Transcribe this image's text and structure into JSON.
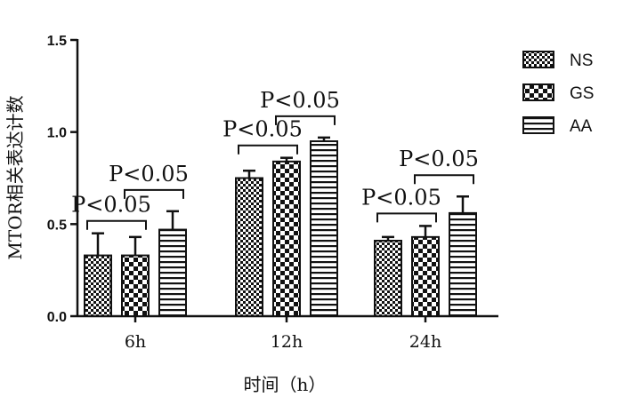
{
  "chart_data": {
    "type": "bar",
    "categories": [
      "6h",
      "12h",
      "24h"
    ],
    "series": [
      {
        "name": "NS",
        "pattern": "checker-fine",
        "values": [
          0.33,
          0.75,
          0.41
        ],
        "errors": [
          0.12,
          0.04,
          0.02
        ]
      },
      {
        "name": "GS",
        "pattern": "checker-coarse",
        "values": [
          0.33,
          0.84,
          0.43
        ],
        "errors": [
          0.1,
          0.02,
          0.06
        ]
      },
      {
        "name": "AA",
        "pattern": "horizontal-stripes",
        "values": [
          0.47,
          0.95,
          0.56
        ],
        "errors": [
          0.1,
          0.02,
          0.09
        ]
      }
    ],
    "xlabel": "时间（h）",
    "ylabel": "MTOR相关表达计数",
    "ylim": [
      0,
      1.5
    ],
    "yticks": [
      "0.0",
      "0.5",
      "1.0",
      "1.5"
    ],
    "legend_position": "right",
    "grid": false,
    "annotations": [
      {
        "text": "P<0.05",
        "category": 0,
        "from": 0,
        "to": 1
      },
      {
        "text": "P<0.05",
        "category": 0,
        "from": 1,
        "to": 2
      },
      {
        "text": "P<0.05",
        "category": 1,
        "from": 0,
        "to": 1
      },
      {
        "text": "P<0.05",
        "category": 1,
        "from": 1,
        "to": 2
      },
      {
        "text": "P<0.05",
        "category": 2,
        "from": 0,
        "to": 1
      },
      {
        "text": "P<0.05",
        "category": 2,
        "from": 1,
        "to": 2
      }
    ],
    "colors": {
      "bar_fill": "#ffffff",
      "pattern_ink": "#111111",
      "axis": "#111111"
    }
  }
}
